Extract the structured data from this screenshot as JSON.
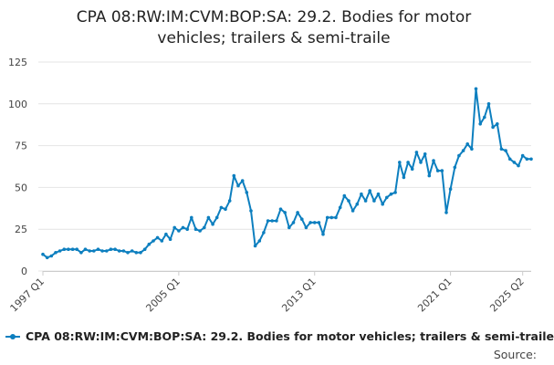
{
  "chart_data": {
    "type": "line",
    "title_lines": [
      "CPA 08:RW:IM:CVM:BOP:SA: 29.2. Bodies for motor",
      "vehicles; trailers & semi-traile"
    ],
    "xlabel": "",
    "ylabel": "",
    "x_tick_labels": [
      "1997 Q1",
      "2005 Q1",
      "2013 Q1",
      "2021 Q1",
      "2025 Q2"
    ],
    "y_ticks": [
      0,
      25,
      50,
      75,
      100,
      125
    ],
    "ylim": [
      0,
      125
    ],
    "grid": "horizontal",
    "legend_position": "bottom",
    "series": [
      {
        "name": "CPA 08:RW:IM:CVM:BOP:SA: 29.2. Bodies for motor vehicles; trailers & semi-traile",
        "color": "#0d7fbf",
        "x_start": "1997 Q1",
        "x_end": "2025 Q2",
        "values": [
          10,
          8,
          9,
          11,
          12,
          13,
          13,
          13,
          13,
          11,
          13,
          12,
          12,
          13,
          12,
          12,
          13,
          13,
          12,
          12,
          11,
          12,
          11,
          11,
          13,
          16,
          18,
          20,
          18,
          22,
          19,
          26,
          24,
          26,
          25,
          32,
          25,
          24,
          26,
          32,
          28,
          32,
          38,
          37,
          42,
          57,
          51,
          54,
          47,
          36,
          15,
          18,
          23,
          30,
          30,
          30,
          37,
          35,
          26,
          29,
          35,
          31,
          26,
          29,
          29,
          29,
          22,
          32,
          32,
          32,
          38,
          45,
          42,
          36,
          40,
          46,
          42,
          48,
          42,
          46,
          40,
          44,
          46,
          47,
          65,
          56,
          65,
          61,
          71,
          65,
          70,
          57,
          66,
          60,
          60,
          35,
          49,
          62,
          69,
          72,
          76,
          73,
          109,
          88,
          92,
          100,
          86,
          88,
          73,
          72,
          67,
          65,
          63,
          69,
          67,
          67
        ]
      }
    ]
  },
  "footer": {
    "source_label": "Source:"
  }
}
